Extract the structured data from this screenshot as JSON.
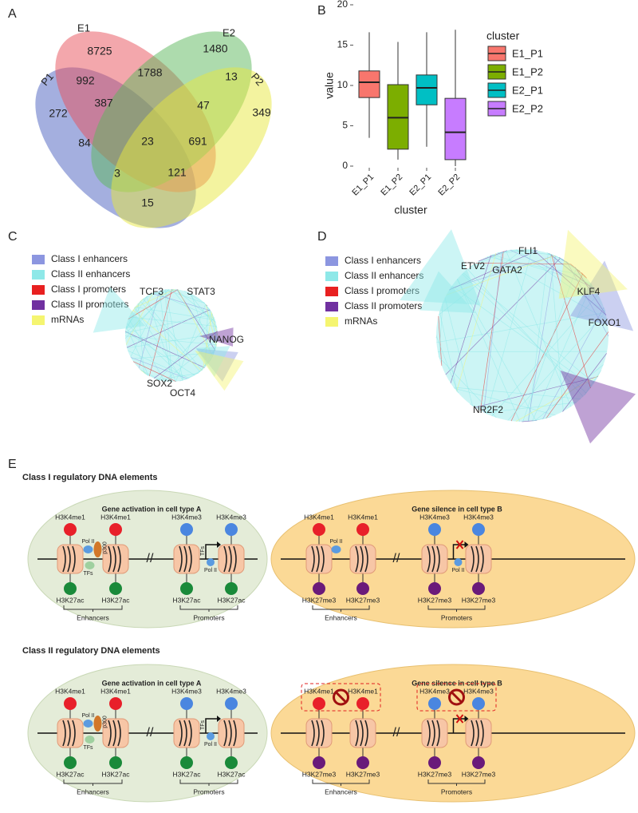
{
  "panel_labels": [
    "A",
    "B",
    "C",
    "D",
    "E"
  ],
  "chart_data": [
    {
      "type": "venn",
      "sets": [
        "E1",
        "E2",
        "P1",
        "P2"
      ],
      "values": [
        8725,
        1480,
        992,
        1788,
        13,
        272,
        387,
        47,
        349,
        84,
        23,
        691,
        3,
        121,
        15
      ]
    },
    {
      "type": "box",
      "x_label": "cluster",
      "y_label": "value",
      "legend_title": "cluster",
      "categories": [
        "E1_P1",
        "E1_P2",
        "E2_P1",
        "E2_P2"
      ],
      "colors": [
        "#f8766d",
        "#7cae00",
        "#00bfc4",
        "#c77cff"
      ],
      "min": [
        3.5,
        0.8,
        2.4,
        0.0
      ],
      "q1": [
        8.5,
        2.1,
        7.6,
        0.8
      ],
      "median": [
        10.4,
        6.0,
        9.7,
        4.2
      ],
      "q3": [
        11.8,
        10.1,
        11.3,
        8.4
      ],
      "max": [
        16.6,
        15.4,
        16.6,
        16.9
      ],
      "ylim": [
        0,
        20
      ],
      "yticks": [
        0,
        5,
        10,
        15,
        20
      ]
    }
  ],
  "network_legend": {
    "labels": [
      "Class I enhancers",
      "Class II enhancers",
      "Class I promoters",
      "Class II promoters",
      "mRNAs"
    ],
    "colors": [
      "#8c96e0",
      "#8ee8e8",
      "#e82020",
      "#7030a0",
      "#f5f570"
    ]
  },
  "networks": [
    {
      "nodes": [
        "TCF3",
        "STAT3",
        "NANOG",
        "SOX2",
        "OCT4"
      ]
    },
    {
      "nodes": [
        "FLI1",
        "ETV2",
        "GATA2",
        "KLF4",
        "FOXO1",
        "NR2F2"
      ]
    }
  ],
  "diagram": {
    "sections": [
      {
        "title": "Class I regulatory DNA elements",
        "cells": [
          {
            "title": "Gene activation in cell type A",
            "top": [
              "H3K4me1",
              "H3K4me1",
              "H3K4me3",
              "H3K4me3"
            ],
            "bottom": [
              "H3K27ac",
              "H3K27ac",
              "H3K27ac",
              "H3K27ac"
            ],
            "groups": [
              "Enhancers",
              "Promoters"
            ],
            "enhancer_factors": [
              "Pol II",
              "p300",
              "TFs"
            ],
            "promoter_factors": [
              "TFs",
              "Pol II"
            ]
          },
          {
            "title": "Gene silence in cell type B",
            "top": [
              "H3K4me1",
              "H3K4me1",
              "H3K4me3",
              "H3K4me3"
            ],
            "bottom": [
              "H3K27me3",
              "H3K27me3",
              "H3K27me3",
              "H3K27me3"
            ],
            "groups": [
              "Enhancers",
              "Promoters"
            ],
            "enhancer_factors": [
              "Pol II"
            ],
            "promoter_factors": [
              "Pol II"
            ]
          }
        ]
      },
      {
        "title": "Class II regulatory DNA elements",
        "cells": [
          {
            "title": "Gene activation in cell type A",
            "top": [
              "H3K4me1",
              "H3K4me1",
              "H3K4me3",
              "H3K4me3"
            ],
            "bottom": [
              "H3K27ac",
              "H3K27ac",
              "H3K27ac",
              "H3K27ac"
            ],
            "groups": [
              "Enhancers",
              "Promoters"
            ],
            "enhancer_factors": [
              "Pol II",
              "p300",
              "TFs"
            ],
            "promoter_factors": [
              "TFs",
              "Pol II"
            ]
          },
          {
            "title": "Gene silence in cell type B",
            "top": [
              "H3K4me1",
              "H3K4me1",
              "H3K4me3",
              "H3K4me3"
            ],
            "bottom": [
              "H3K27me3",
              "H3K27me3",
              "H3K27me3",
              "H3K27me3"
            ],
            "groups": [
              "Enhancers",
              "Promoters"
            ],
            "enhancer_factors": [],
            "promoter_factors": []
          }
        ]
      }
    ]
  }
}
